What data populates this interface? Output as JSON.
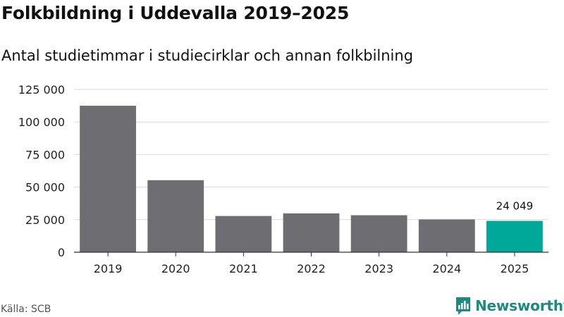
{
  "chart_data": {
    "type": "bar",
    "title": "Folkbildning i Uddevalla 2019–2025",
    "subtitle": "Antal studietimmar i studiecirklar och annan folkbilning",
    "categories": [
      "2019",
      "2020",
      "2021",
      "2022",
      "2023",
      "2024",
      "2025"
    ],
    "values": [
      112500,
      55300,
      27800,
      29800,
      28400,
      25200,
      24049
    ],
    "highlight_index": 6,
    "data_labels": [
      {
        "index": 6,
        "text": "24 049"
      }
    ],
    "yticks": [
      0,
      25000,
      50000,
      75000,
      100000,
      125000
    ],
    "ytick_labels": [
      "0",
      "25 000",
      "50 000",
      "75 000",
      "100 000",
      "125 000"
    ],
    "ylim": [
      0,
      125000
    ],
    "xlabel": "",
    "ylabel": "",
    "grid": true,
    "colors": {
      "bar": "#6e6d72",
      "highlight": "#00a89a",
      "grid": "#d9d9d9",
      "axis": "#333333"
    }
  },
  "footer": {
    "source": "Källa: SCB",
    "brand": "Newsworthy",
    "brand_icon": "newsworthy-logo-icon"
  }
}
